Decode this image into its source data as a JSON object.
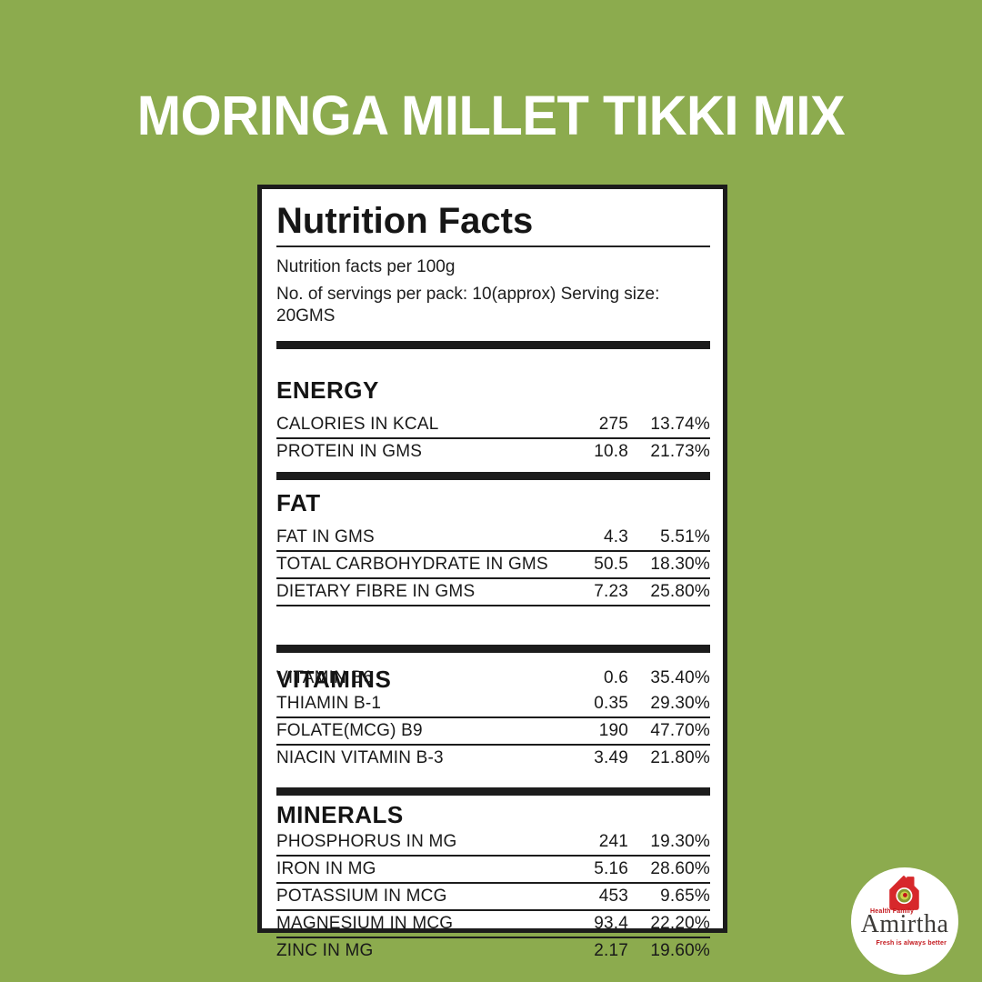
{
  "page": {
    "background_color": "#8cab4e",
    "title": "MORINGA MILLET TIKKI MIX"
  },
  "label": {
    "heading": "Nutrition Facts",
    "per_100g_line": "Nutrition facts per 100g",
    "servings_line": "No. of servings per pack: 10(approx) Serving size: 20GMS",
    "sections": [
      {
        "heading": "ENERGY",
        "overlap_first_row": false,
        "rows": [
          {
            "label": "CALORIES IN KCAL",
            "value": "275",
            "percent": "13.74%",
            "rule": true
          },
          {
            "label": "PROTEIN IN GMS",
            "value": "10.8",
            "percent": "21.73%",
            "rule": false
          }
        ]
      },
      {
        "heading": "FAT",
        "overlap_first_row": false,
        "rows": [
          {
            "label": "FAT IN GMS",
            "value": "4.3",
            "percent": "5.51%",
            "rule": true
          },
          {
            "label": "TOTAL CARBOHYDRATE IN GMS",
            "value": "50.5",
            "percent": "18.30%",
            "rule": true
          },
          {
            "label": "DIETARY FIBRE IN GMS",
            "value": "7.23",
            "percent": "25.80%",
            "rule": true
          }
        ]
      },
      {
        "heading": "VITAMINS",
        "overlap_first_row": true,
        "rows": [
          {
            "label": "VITAMIN B6",
            "value": "0.6",
            "percent": "35.40%",
            "rule": false
          },
          {
            "label": "THIAMIN B-1",
            "value": "0.35",
            "percent": "29.30%",
            "rule": true
          },
          {
            "label": "FOLATE(MCG) B9",
            "value": "190",
            "percent": "47.70%",
            "rule": true
          },
          {
            "label": "NIACIN VITAMIN B-3",
            "value": "3.49",
            "percent": "21.80%",
            "rule": false
          }
        ]
      },
      {
        "heading": "MINERALS",
        "overlap_first_row": false,
        "rows": [
          {
            "label": "PHOSPHORUS IN MG",
            "value": "241",
            "percent": "19.30%",
            "rule": true
          },
          {
            "label": "IRON IN MG",
            "value": "5.16",
            "percent": "28.60%",
            "rule": true
          },
          {
            "label": "POTASSIUM IN MCG",
            "value": "453",
            "percent": "9.65%",
            "rule": true
          },
          {
            "label": "MAGNESIUM IN MCG",
            "value": "93.4",
            "percent": "22.20%",
            "rule": true
          },
          {
            "label": "ZINC IN MG",
            "value": "2.17",
            "percent": "19.60%",
            "rule": false
          }
        ]
      }
    ]
  },
  "logo": {
    "brand": "Amirtha",
    "top_text": "Health Family",
    "tagline": "Fresh is always better",
    "house_color": "#d7282b",
    "swirl_olive": "#87972e",
    "swirl_yellow": "#ccd34b",
    "swirl_red": "#c3161b"
  },
  "colors": {
    "text": "#1b1b1b",
    "card_background": "#ffffff",
    "title_text": "#ffffff"
  }
}
